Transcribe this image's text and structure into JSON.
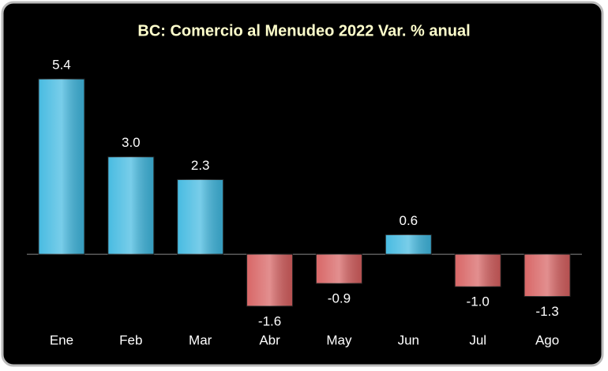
{
  "chart_data": {
    "type": "bar",
    "title": "BC: Comercio al Menudeo 2022 Var. % anual",
    "categories": [
      "Ene",
      "Feb",
      "Mar",
      "Abr",
      "May",
      "Jun",
      "Jul",
      "Ago"
    ],
    "values": [
      5.4,
      3.0,
      2.3,
      -1.6,
      -0.9,
      0.6,
      -1.0,
      -1.3
    ],
    "value_labels": [
      "5.4",
      "3.0",
      "2.3",
      "-1.6",
      "-0.9",
      "0.6",
      "-1.0",
      "-1.3"
    ],
    "color_positive": "#3fb8e0",
    "color_negative": "#d65f5f",
    "ylim": [
      -2.2,
      6.4
    ]
  }
}
